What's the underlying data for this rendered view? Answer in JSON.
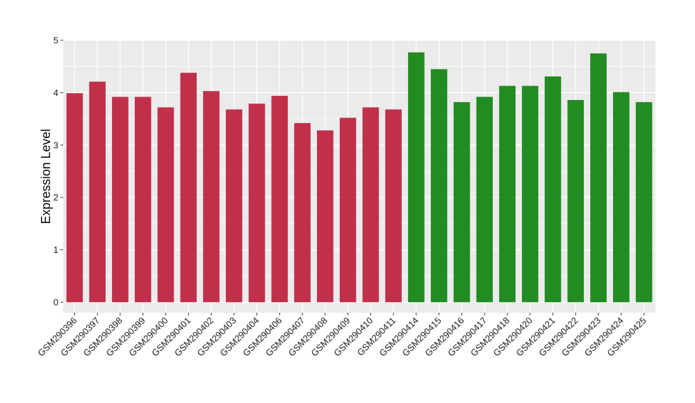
{
  "chart_data": {
    "type": "bar",
    "title": "",
    "xlabel": "",
    "ylabel": "Expression Level",
    "ylim": [
      -0.2,
      5.0
    ],
    "yticks": [
      0,
      1,
      2,
      3,
      4,
      5
    ],
    "grid": true,
    "legend": "none",
    "panel_background": "#ebebeb",
    "grid_color": "#ffffff",
    "categories": [
      "GSM290396",
      "GSM290397",
      "GSM290398",
      "GSM290399",
      "GSM290400",
      "GSM290401",
      "GSM290402",
      "GSM290403",
      "GSM290404",
      "GSM290406",
      "GSM290407",
      "GSM290408",
      "GSM290409",
      "GSM290410",
      "GSM290411",
      "GSM290414",
      "GSM290415",
      "GSM290416",
      "GSM290417",
      "GSM290418",
      "GSM290420",
      "GSM290421",
      "GSM290422",
      "GSM290423",
      "GSM290424",
      "GSM290425"
    ],
    "values": [
      3.99,
      4.21,
      3.92,
      3.92,
      3.72,
      4.38,
      4.03,
      3.68,
      3.79,
      3.94,
      3.42,
      3.28,
      3.52,
      3.72,
      3.68,
      4.77,
      4.45,
      3.82,
      3.92,
      4.13,
      4.13,
      4.31,
      3.86,
      4.75,
      4.01,
      3.82
    ],
    "groups": [
      {
        "color": "#c0304a",
        "count": 15
      },
      {
        "color": "#228b22",
        "count": 11
      }
    ]
  }
}
